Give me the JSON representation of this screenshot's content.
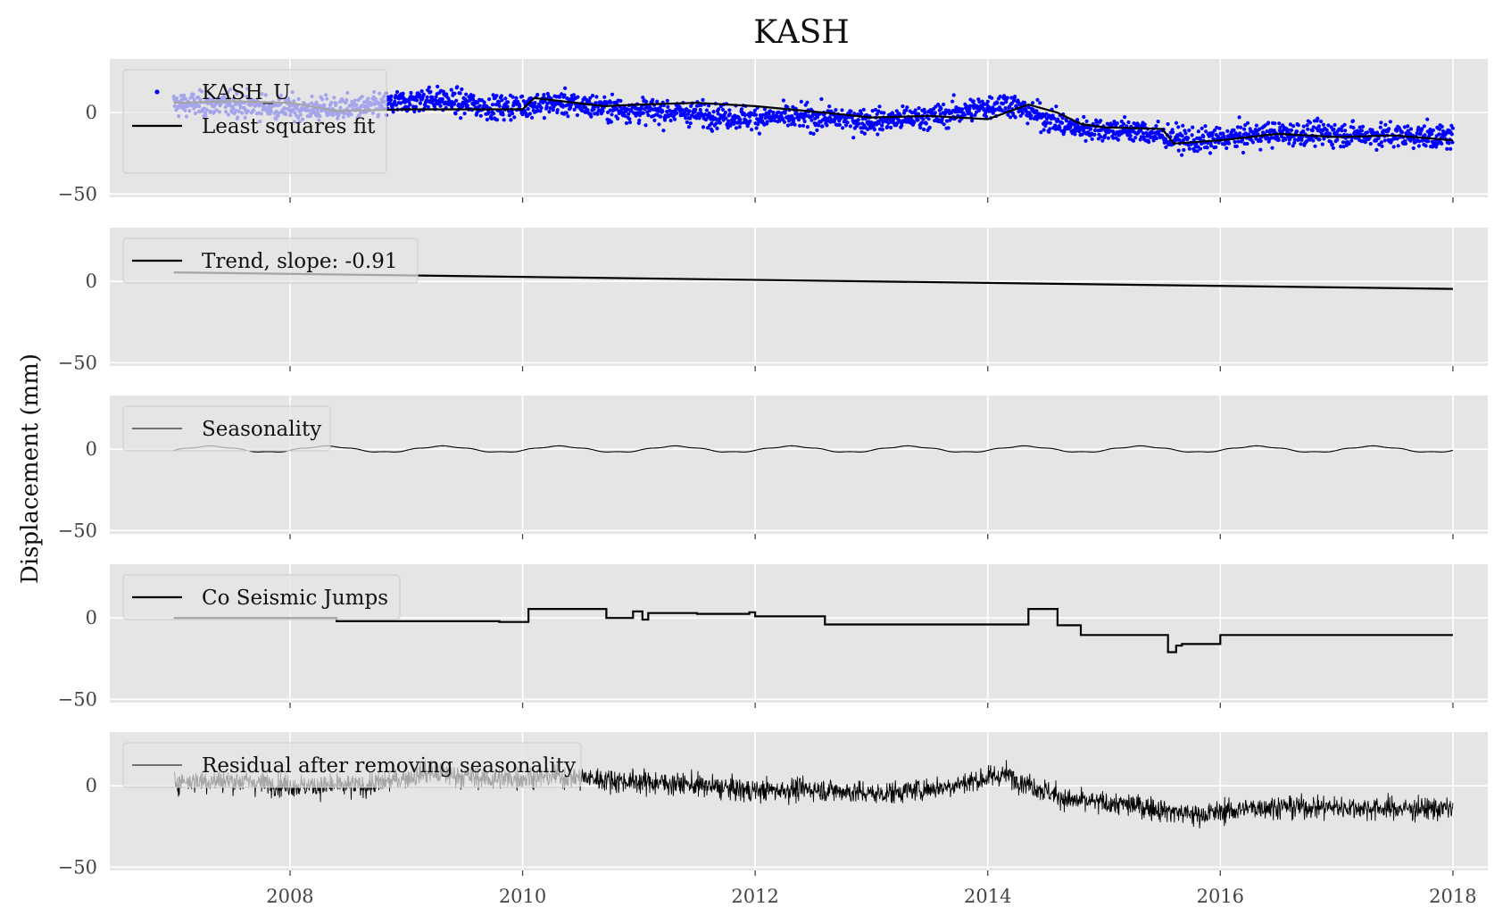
{
  "figure": {
    "title": "KASH",
    "ylabel": "Displacement (mm)"
  },
  "chart_data": {
    "type": "line",
    "title": "KASH",
    "ylabel": "Displacement (mm)",
    "xlabel": "",
    "xlim": [
      2006.45,
      2018.3
    ],
    "x_ticks": [
      2008,
      2010,
      2012,
      2014,
      2016,
      2018
    ],
    "x_tick_labels": [
      "2008",
      "2010",
      "2012",
      "2014",
      "2016",
      "2018"
    ],
    "grid": true,
    "background": "#e5e5e5",
    "panels": [
      {
        "id": "observed",
        "ylim": [
          -52,
          33
        ],
        "y_ticks": [
          -50,
          0
        ],
        "y_tick_labels": [
          "−50",
          "0"
        ],
        "legend": [
          "KASH_U",
          "Least squares fit"
        ],
        "legend_placement": "upper-left",
        "series": [
          {
            "name": "KASH_U",
            "style": "scatter",
            "color": "#0000ff",
            "x_range": [
              2007.0,
              2018.0
            ],
            "approx_level": [
              5,
              5,
              2,
              3,
              9,
              3,
              6,
              2,
              0,
              -3,
              -3,
              -5,
              -2,
              6,
              -9,
              -11,
              -18,
              -13,
              -13,
              -14,
              -15
            ]
          },
          {
            "name": "Least squares fit",
            "style": "line",
            "color": "#000000",
            "x": [
              2007.0,
              2007.5,
              2008.0,
              2008.4,
              2009.0,
              2009.5,
              2010.0,
              2010.1,
              2010.7,
              2011.0,
              2011.5,
              2012.0,
              2012.6,
              2013.0,
              2013.5,
              2014.0,
              2014.35,
              2014.6,
              2014.8,
              2015.0,
              2015.5,
              2015.6,
              2016.0,
              2016.5,
              2017.0,
              2017.5,
              2018.0
            ],
            "y": [
              6,
              7,
              6,
              1,
              2,
              2,
              2,
              9,
              4,
              5,
              6,
              4,
              0,
              -3,
              -2,
              -4,
              5,
              0,
              -7,
              -9,
              -10,
              -19,
              -17,
              -13,
              -15,
              -14,
              -17
            ]
          }
        ]
      },
      {
        "id": "trend",
        "ylim": [
          -52,
          33
        ],
        "y_ticks": [
          -50,
          0
        ],
        "y_tick_labels": [
          "−50",
          "0"
        ],
        "legend": [
          "Trend, slope: -0.91"
        ],
        "legend_placement": "upper-left",
        "series": [
          {
            "name": "Trend, slope: -0.91",
            "style": "line",
            "color": "#000000",
            "x": [
              2007.0,
              2018.0
            ],
            "y": [
              5.5,
              -4.6
            ]
          }
        ]
      },
      {
        "id": "seasonality",
        "ylim": [
          -52,
          33
        ],
        "y_ticks": [
          -50,
          0
        ],
        "y_tick_labels": [
          "−50",
          "0"
        ],
        "legend": [
          "Seasonality"
        ],
        "legend_placement": "upper-left",
        "series": [
          {
            "name": "Seasonality",
            "style": "line",
            "color": "#000000",
            "x_range": [
              2007.0,
              2018.0
            ],
            "amplitude": 1.8,
            "period_years": 1.0
          }
        ]
      },
      {
        "id": "jumps",
        "ylim": [
          -52,
          33
        ],
        "y_ticks": [
          -50,
          0
        ],
        "y_tick_labels": [
          "−50",
          "0"
        ],
        "legend": [
          "Co Seismic Jumps"
        ],
        "legend_placement": "upper-left",
        "series": [
          {
            "name": "Co Seismic Jumps",
            "style": "step",
            "color": "#000000",
            "x": [
              2007.0,
              2008.4,
              2009.05,
              2009.8,
              2010.05,
              2010.72,
              2010.95,
              2011.03,
              2011.08,
              2011.5,
              2011.95,
              2012.0,
              2012.6,
              2014.35,
              2014.6,
              2014.8,
              2015.55,
              2015.62,
              2015.67,
              2016.0,
              2018.0
            ],
            "y": [
              0,
              -2,
              -2,
              -2.5,
              5.5,
              0,
              4,
              -1,
              3,
              2.5,
              3.5,
              1,
              -4,
              5.5,
              -4.5,
              -10.5,
              -21,
              -17,
              -16,
              -10.5,
              -10.5
            ]
          }
        ]
      },
      {
        "id": "residual",
        "ylim": [
          -52,
          33
        ],
        "y_ticks": [
          -50,
          0
        ],
        "y_tick_labels": [
          "−50",
          "0"
        ],
        "legend": [
          "Residual after removing seasonality"
        ],
        "legend_placement": "upper-left",
        "series": [
          {
            "name": "Residual after removing seasonality",
            "style": "line",
            "color": "#000000",
            "x_range": [
              2007.0,
              2018.0
            ],
            "approx_level": [
              3,
              3,
              0,
              0,
              8,
              4,
              6,
              3,
              1,
              -3,
              -2,
              -5,
              -1,
              7,
              -9,
              -12,
              -18,
              -13,
              -13,
              -14,
              -14
            ]
          }
        ]
      }
    ]
  }
}
